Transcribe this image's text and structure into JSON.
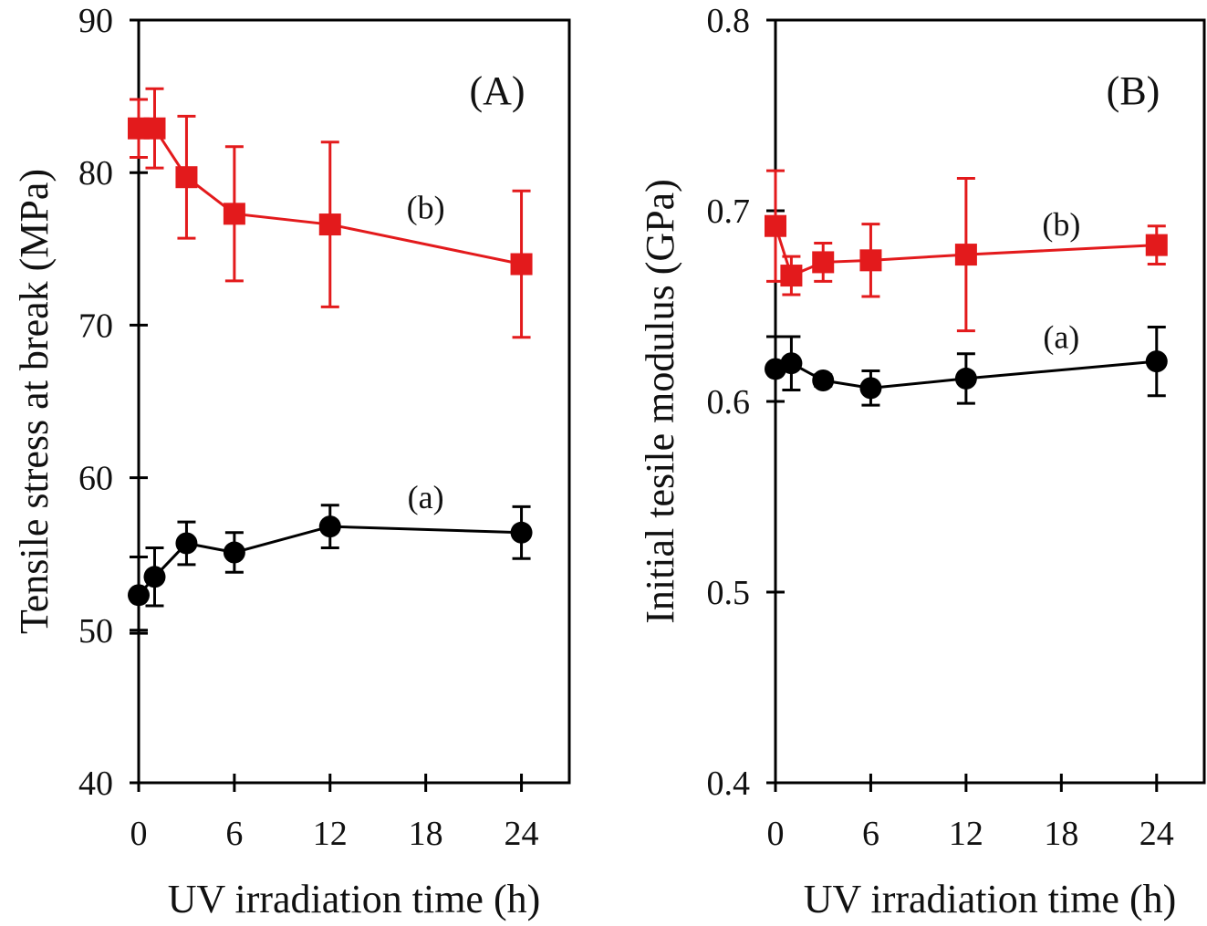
{
  "chart_data": [
    {
      "type": "line",
      "panel": "(A)",
      "title": "",
      "xlabel": "UV irradiation time (h)",
      "ylabel": "Tensile stress at break (MPa)",
      "xlim": [
        0,
        27
      ],
      "ylim": [
        40,
        90
      ],
      "xticks": [
        0,
        6,
        12,
        18,
        24
      ],
      "yticks": [
        40,
        50,
        60,
        70,
        80,
        90
      ],
      "grid": false,
      "error_bars": true,
      "series": [
        {
          "name": "(a)",
          "color": "#000000",
          "marker": "circle",
          "x": [
            0,
            1,
            3,
            6,
            12,
            24
          ],
          "y": [
            52.3,
            53.5,
            55.7,
            55.1,
            56.8,
            56.4
          ],
          "err": [
            2.5,
            1.9,
            1.4,
            1.3,
            1.4,
            1.7
          ],
          "label_pos": {
            "x": 18,
            "y": 58
          }
        },
        {
          "name": "(b)",
          "color": "#e31a1c",
          "marker": "square",
          "x": [
            0,
            1,
            3,
            6,
            12,
            24
          ],
          "y": [
            82.9,
            82.9,
            79.7,
            77.3,
            76.6,
            74.0
          ],
          "err": [
            1.9,
            2.6,
            4.0,
            4.4,
            5.4,
            4.8
          ],
          "label_pos": {
            "x": 18,
            "y": 77
          }
        }
      ]
    },
    {
      "type": "line",
      "panel": "(B)",
      "title": "",
      "xlabel": "UV irradiation time (h)",
      "ylabel": "Initial tesile modulus (GPa)",
      "xlim": [
        0,
        27
      ],
      "ylim": [
        0.4,
        0.8
      ],
      "xticks": [
        0,
        6,
        12,
        18,
        24
      ],
      "yticks": [
        0.4,
        0.5,
        0.6,
        0.7,
        0.8
      ],
      "grid": false,
      "error_bars": true,
      "series": [
        {
          "name": "(a)",
          "color": "#000000",
          "marker": "circle",
          "x": [
            0,
            1,
            3,
            6,
            12,
            24
          ],
          "y": [
            0.617,
            0.62,
            0.611,
            0.607,
            0.612,
            0.621
          ],
          "err": [
            0.017,
            0.014,
            0.003,
            0.009,
            0.013,
            0.018
          ],
          "label_pos": {
            "x": 18,
            "y": 0.628
          }
        },
        {
          "name": "(b)",
          "color": "#e31a1c",
          "marker": "square",
          "x": [
            0,
            1,
            3,
            6,
            12,
            24
          ],
          "y": [
            0.692,
            0.666,
            0.673,
            0.674,
            0.677,
            0.682
          ],
          "err": [
            0.029,
            0.01,
            0.01,
            0.019,
            0.04,
            0.01
          ],
          "label_pos": {
            "x": 18,
            "y": 0.687
          }
        }
      ]
    }
  ]
}
